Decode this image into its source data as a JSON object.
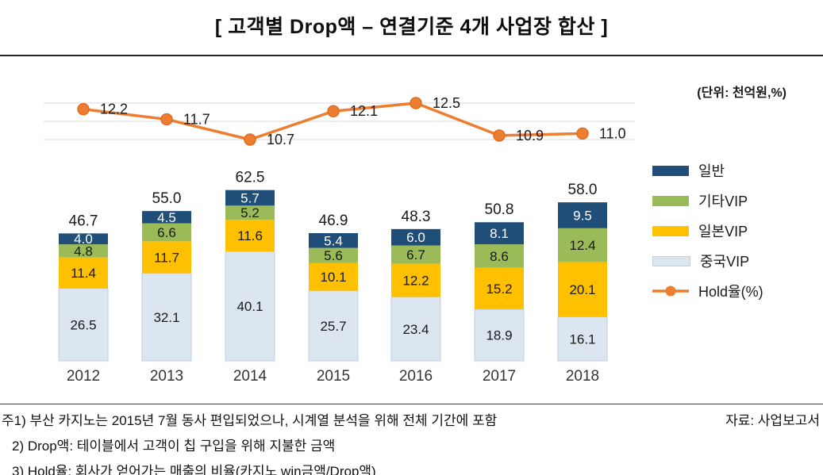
{
  "header": {
    "title": "[ 고객별 Drop액 – 연결기준 4개 사업장 합산 ]",
    "unit_label": "(단위: 천억원,%)"
  },
  "legend": {
    "items": [
      {
        "label": "일반",
        "color": "#1f4e79",
        "type": "bar"
      },
      {
        "label": "기타VIP",
        "color": "#9bbb59",
        "type": "bar"
      },
      {
        "label": "일본VIP",
        "color": "#ffc000",
        "type": "bar"
      },
      {
        "label": "중국VIP",
        "color": "#dce6f1",
        "type": "bar",
        "border": "#c0cfe0"
      },
      {
        "label": "Hold율(%)",
        "color": "#ed7d31",
        "type": "line"
      }
    ]
  },
  "chart_data": {
    "type": "bar+line",
    "title": "[ 고객별 Drop액 – 연결기준 4개 사업장 합산 ]",
    "unit": "천억원,%",
    "categories": [
      "2012",
      "2013",
      "2014",
      "2015",
      "2016",
      "2017",
      "2018"
    ],
    "series": [
      {
        "name": "중국VIP",
        "color": "#dce6f1",
        "border": "#c0cfe0",
        "label_color": "#1a1a1a",
        "values": [
          26.5,
          32.1,
          40.1,
          25.7,
          23.4,
          18.9,
          16.1
        ]
      },
      {
        "name": "일본VIP",
        "color": "#ffc000",
        "label_color": "#1a1a1a",
        "values": [
          11.4,
          11.7,
          11.6,
          10.1,
          12.2,
          15.2,
          20.1
        ]
      },
      {
        "name": "기타VIP",
        "color": "#9bbb59",
        "label_color": "#1a1a1a",
        "values": [
          4.8,
          6.6,
          5.2,
          5.6,
          6.7,
          8.6,
          12.4
        ]
      },
      {
        "name": "일반",
        "color": "#1f4e79",
        "label_color": "#ffffff",
        "values": [
          4.0,
          4.5,
          5.7,
          5.4,
          6.0,
          8.1,
          9.5
        ]
      }
    ],
    "totals": [
      46.7,
      55.0,
      62.5,
      46.9,
      48.3,
      50.8,
      58.0
    ],
    "line_series": {
      "name": "Hold율(%)",
      "color": "#ed7d31",
      "marker_stroke": "#e06d1f",
      "values": [
        12.2,
        11.7,
        10.7,
        12.1,
        12.5,
        10.9,
        11.0
      ]
    },
    "bar_ylim": [
      0,
      70
    ],
    "line_ylim": [
      10,
      13
    ],
    "grid": "partial-horizontal",
    "legend_position": "right"
  },
  "footer": {
    "notes": [
      "주1) 부산 카지노는 2015년 7월 동사 편입되었으나, 시계열 분석을 위해 전체 기간에 포함",
      "2) Drop액: 테이블에서 고객이 칩 구입을 위해 지불한 금액",
      "3) Hold율: 회사가 얻어가는 매출의 비율(카지노 win금액/Drop액)"
    ],
    "source": "자료: 사업보고서"
  }
}
